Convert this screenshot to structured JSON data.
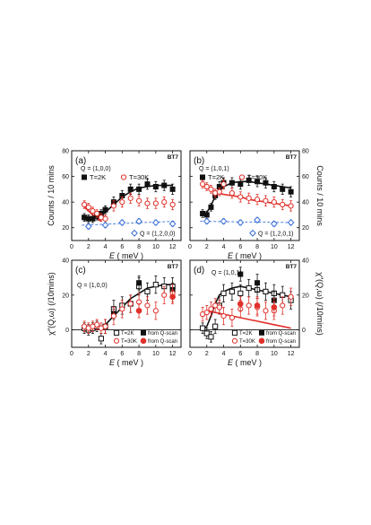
{
  "colors": {
    "black": "#111111",
    "red": "#e0302a",
    "blue": "#3a6fd8"
  },
  "chart_data": [
    {
      "type": "scatter",
      "panel": "(a)",
      "instrument": "BT7",
      "ylabel": "Counts / 10 mins",
      "xlabel_prefix": "E",
      "xlabel_suffix": "( meV )",
      "xlim": [
        0,
        13
      ],
      "ylim": [
        10,
        80
      ],
      "xticks": [
        0,
        2,
        4,
        6,
        8,
        10,
        12
      ],
      "yticks": [
        20,
        40,
        60,
        80
      ],
      "annotations": [
        "Q = (1,0,0)",
        "Q = (1,2,0,0)"
      ],
      "legend": [
        {
          "label": "T=2K",
          "marker": "filled-square",
          "color": "#111111"
        },
        {
          "label": "T=30K",
          "marker": "open-circle",
          "color": "#e0302a"
        }
      ],
      "series": [
        {
          "name": "T=2K",
          "color": "#111111",
          "marker": "filled-square",
          "x": [
            1.5,
            2,
            2.5,
            3,
            3.5,
            4,
            5,
            6,
            7,
            8,
            9,
            10,
            11,
            12
          ],
          "y": [
            28,
            27,
            27,
            29,
            31,
            34,
            40,
            45,
            50,
            50,
            54,
            52,
            53,
            50
          ],
          "err": [
            3,
            3,
            3,
            3,
            3,
            3,
            4,
            4,
            4,
            4,
            4,
            4,
            4,
            4
          ]
        },
        {
          "name": "T=30K",
          "color": "#e0302a",
          "marker": "open-circle",
          "x": [
            1.5,
            2,
            2.5,
            3,
            3.5,
            4,
            5,
            6,
            7,
            8,
            9,
            10,
            11,
            12
          ],
          "y": [
            38,
            36,
            33,
            31,
            28,
            27,
            37,
            40,
            43,
            41,
            39,
            39,
            40,
            38
          ],
          "err": [
            3,
            3,
            3,
            3,
            3,
            3,
            4,
            4,
            4,
            4,
            4,
            4,
            4,
            4
          ]
        },
        {
          "name": "Q = (1,2,0,0)",
          "color": "#3a6fd8",
          "marker": "open-diamond",
          "x": [
            2,
            4,
            6,
            8,
            10,
            12
          ],
          "y": [
            21,
            22,
            24,
            25,
            24,
            23
          ],
          "err": [
            2,
            2,
            2,
            2,
            2,
            2
          ]
        }
      ],
      "fits": [
        {
          "color": "#111111",
          "style": "solid",
          "x": [
            1.5,
            3,
            4,
            5,
            6,
            7,
            8,
            9,
            10,
            11,
            12
          ],
          "y": [
            26,
            28,
            32,
            38,
            44,
            48,
            51,
            52,
            53,
            53,
            53
          ]
        },
        {
          "color": "#e0302a",
          "style": "solid",
          "x": [
            1.2,
            2,
            2.5,
            3,
            3.5
          ],
          "y": [
            38,
            33,
            30,
            27,
            25
          ]
        },
        {
          "color": "#3a6fd8",
          "style": "dashed",
          "x": [
            1.2,
            12.2
          ],
          "y": [
            22,
            25
          ]
        }
      ]
    },
    {
      "type": "scatter",
      "panel": "(b)",
      "instrument": "BT7",
      "ylabel": "Counts / 10 mins",
      "xlabel_prefix": "E",
      "xlabel_suffix": "( meV )",
      "xlim": [
        0,
        13
      ],
      "ylim": [
        10,
        80
      ],
      "xticks": [
        0,
        2,
        4,
        6,
        8,
        10,
        12
      ],
      "yticks": [
        20,
        40,
        60,
        80
      ],
      "annotations": [
        "Q = (1,0,1)",
        "Q = (1,2,0,1)"
      ],
      "legend": [
        {
          "label": "T=2K",
          "marker": "filled-square",
          "color": "#111111"
        },
        {
          "label": "T=30K",
          "marker": "open-circle",
          "color": "#e0302a"
        }
      ],
      "series": [
        {
          "name": "T=2K",
          "color": "#111111",
          "marker": "filled-square",
          "x": [
            1.5,
            2,
            2.5,
            3,
            3.5,
            4,
            5,
            6,
            7,
            8,
            9,
            10,
            11,
            12
          ],
          "y": [
            31,
            30,
            36,
            45,
            52,
            55,
            55,
            54,
            57,
            56,
            55,
            52,
            50,
            48
          ],
          "err": [
            3,
            3,
            3,
            3,
            4,
            4,
            4,
            4,
            4,
            4,
            4,
            4,
            4,
            4
          ]
        },
        {
          "name": "T=30K",
          "color": "#e0302a",
          "marker": "open-circle",
          "x": [
            1.5,
            2,
            2.5,
            3,
            3.5,
            4,
            5,
            6,
            7,
            8,
            9,
            10,
            11,
            12
          ],
          "y": [
            54,
            52,
            50,
            47,
            48,
            54,
            47,
            44,
            43,
            42,
            41,
            40,
            38,
            37
          ],
          "err": [
            3,
            3,
            3,
            3,
            3,
            4,
            4,
            4,
            4,
            4,
            4,
            4,
            4,
            4
          ]
        },
        {
          "name": "Q = (1,2,0,1)",
          "color": "#3a6fd8",
          "marker": "open-diamond",
          "x": [
            2,
            4,
            6,
            8,
            10,
            12
          ],
          "y": [
            25,
            25,
            24,
            26,
            23,
            24
          ],
          "err": [
            2,
            2,
            2,
            2,
            2,
            2
          ]
        }
      ],
      "fits": [
        {
          "color": "#111111",
          "style": "solid",
          "x": [
            1.5,
            2,
            2.5,
            3,
            4,
            5,
            6,
            7,
            8,
            9,
            10,
            11,
            12
          ],
          "y": [
            30,
            32,
            37,
            45,
            52,
            55,
            56,
            56,
            55,
            54,
            53,
            52,
            51
          ]
        },
        {
          "color": "#e0302a",
          "style": "solid",
          "x": [
            1.5,
            2,
            2.5,
            3,
            4,
            5,
            6,
            7,
            8,
            9,
            10,
            11,
            12
          ],
          "y": [
            54,
            53,
            50,
            47,
            46,
            45,
            44,
            42,
            41,
            40,
            39,
            38,
            37
          ]
        },
        {
          "color": "#3a6fd8",
          "style": "dashed",
          "x": [
            1.2,
            12.2
          ],
          "y": [
            25,
            24
          ]
        }
      ]
    },
    {
      "type": "scatter",
      "panel": "(c)",
      "instrument": "BT7",
      "ylabel": "χ″(Q,ω) (/10mins)",
      "xlabel_prefix": "E",
      "xlabel_suffix": "( meV )",
      "xlim": [
        0,
        13
      ],
      "ylim": [
        -10,
        40
      ],
      "xticks": [
        0,
        2,
        4,
        6,
        8,
        10,
        12
      ],
      "yticks": [
        0,
        20,
        40
      ],
      "annotations": [
        "Q = (1,0,0)"
      ],
      "legend": [
        {
          "label": "T=2K",
          "marker": "open-square",
          "color": "#111111"
        },
        {
          "label": "from Q-scan",
          "marker": "filled-square",
          "color": "#111111"
        },
        {
          "label": "T=30K",
          "marker": "open-circle",
          "color": "#e0302a"
        },
        {
          "label": "from Q-scan",
          "marker": "filled-circle",
          "color": "#e0302a"
        }
      ],
      "series": [
        {
          "name": "T=2K",
          "color": "#111111",
          "marker": "open-square",
          "x": [
            1.5,
            2,
            2.5,
            3,
            3.5,
            4,
            5,
            6,
            7,
            8,
            9,
            10,
            11,
            12
          ],
          "y": [
            1,
            0,
            1,
            2,
            -5,
            2,
            12,
            14,
            15,
            25,
            22,
            26,
            25,
            25
          ],
          "err": [
            3,
            3,
            3,
            3,
            3,
            4,
            5,
            5,
            5,
            5,
            5,
            5,
            5,
            5
          ]
        },
        {
          "name": "from Q-scan",
          "color": "#111111",
          "marker": "filled-square",
          "x": [
            5,
            8,
            12
          ],
          "y": [
            9,
            27,
            23
          ],
          "err": [
            3,
            4,
            4
          ]
        },
        {
          "name": "T=30K",
          "color": "#e0302a",
          "marker": "open-circle",
          "x": [
            1.5,
            2,
            2.5,
            3,
            3.5,
            4,
            5,
            6,
            7,
            8,
            9,
            10,
            11,
            12
          ],
          "y": [
            2,
            1,
            2,
            3,
            1,
            2,
            8,
            12,
            15,
            16,
            14,
            11,
            20,
            21
          ],
          "err": [
            3,
            3,
            3,
            3,
            3,
            4,
            5,
            5,
            5,
            5,
            5,
            5,
            5,
            5
          ]
        },
        {
          "name": "from Q-scan",
          "color": "#e0302a",
          "marker": "filled-circle",
          "x": [
            8,
            12
          ],
          "y": [
            11,
            19
          ],
          "err": [
            4,
            4
          ]
        }
      ],
      "fits": [
        {
          "color": "#111111",
          "style": "solid",
          "x": [
            1.2,
            2,
            3,
            4,
            5,
            6,
            7,
            8,
            9,
            10,
            11,
            12
          ],
          "y": [
            0,
            0,
            0.5,
            3,
            8,
            13,
            18,
            21,
            24,
            25,
            26,
            26
          ]
        },
        {
          "color": "#111111",
          "style": "solid",
          "x": [
            0,
            13
          ],
          "y": [
            0,
            0
          ]
        }
      ]
    },
    {
      "type": "scatter",
      "panel": "(d)",
      "instrument": "BT7",
      "ylabel": "χ″(Q,ω) (/10mins)",
      "xlabel_prefix": "E",
      "xlabel_suffix": "( meV )",
      "xlim": [
        0,
        13
      ],
      "ylim": [
        -10,
        40
      ],
      "xticks": [
        0,
        2,
        4,
        6,
        8,
        10,
        12
      ],
      "yticks": [
        0,
        20,
        40
      ],
      "annotations": [
        "Q = (1,0,1)"
      ],
      "legend": [
        {
          "label": "T=2K",
          "marker": "open-square",
          "color": "#111111"
        },
        {
          "label": "from Q-scan",
          "marker": "filled-square",
          "color": "#111111"
        },
        {
          "label": "T=30K",
          "marker": "open-circle",
          "color": "#e0302a"
        },
        {
          "label": "from Q-scan",
          "marker": "filled-circle",
          "color": "#e0302a"
        }
      ],
      "series": [
        {
          "name": "T=2K",
          "color": "#111111",
          "marker": "open-square",
          "x": [
            1.5,
            2,
            2.5,
            3,
            3.5,
            4,
            5,
            6,
            7,
            8,
            9,
            10,
            11,
            12
          ],
          "y": [
            1,
            -2,
            -4,
            2,
            14,
            21,
            22,
            21,
            24,
            23,
            22,
            21,
            20,
            17
          ],
          "err": [
            3,
            3,
            3,
            4,
            5,
            5,
            5,
            5,
            5,
            5,
            5,
            5,
            5,
            5
          ]
        },
        {
          "name": "from Q-scan",
          "color": "#111111",
          "marker": "filled-square",
          "x": [
            6,
            8,
            10
          ],
          "y": [
            32,
            27,
            17
          ],
          "err": [
            4,
            5,
            5
          ]
        },
        {
          "name": "T=30K",
          "color": "#e0302a",
          "marker": "open-circle",
          "x": [
            1.5,
            2,
            2.5,
            3,
            3.5,
            4,
            5,
            6,
            7,
            8,
            9,
            10,
            11,
            12
          ],
          "y": [
            9,
            10,
            12,
            14,
            13,
            8,
            7,
            12,
            14,
            13,
            11,
            11,
            14,
            19
          ],
          "err": [
            4,
            4,
            4,
            4,
            4,
            5,
            5,
            5,
            5,
            5,
            5,
            5,
            5,
            5
          ]
        },
        {
          "name": "from Q-scan",
          "color": "#e0302a",
          "marker": "filled-circle",
          "x": [
            6,
            8,
            10
          ],
          "y": [
            15,
            14,
            13
          ],
          "err": [
            4,
            5,
            5
          ]
        }
      ],
      "fits": [
        {
          "color": "#111111",
          "style": "solid",
          "x": [
            1.5,
            2,
            2.5,
            3,
            3.5,
            4,
            5,
            6,
            7,
            8,
            9,
            10,
            11,
            12
          ],
          "y": [
            0,
            2,
            8,
            15,
            20,
            22,
            24,
            25,
            24,
            23,
            22,
            21,
            20,
            19
          ]
        },
        {
          "color": "#e0302a",
          "style": "solid",
          "x": [
            1.5,
            2,
            2.5,
            3,
            4,
            5,
            6,
            7,
            8,
            9,
            10,
            11,
            12
          ],
          "y": [
            9,
            10,
            10.5,
            10,
            9,
            8,
            7,
            6,
            5,
            4,
            3,
            2,
            1
          ]
        },
        {
          "color": "#111111",
          "style": "solid",
          "x": [
            0,
            13
          ],
          "y": [
            0,
            0
          ]
        }
      ]
    }
  ]
}
